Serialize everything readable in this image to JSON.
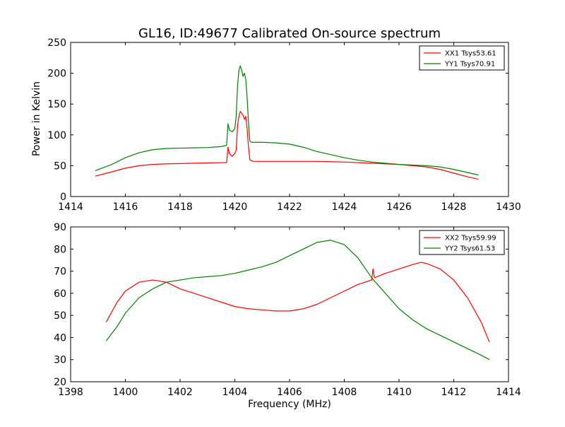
{
  "figure": {
    "title": "GL16, ID:49677 Calibrated On-source spectrum",
    "ylabel": "Power in Kelvin",
    "xlabel": "Frequency (MHz)"
  },
  "chart_data": [
    {
      "type": "line",
      "title": "GL16, ID:49677 Calibrated On-source spectrum",
      "ylabel": "Power in Kelvin",
      "xlabel": "",
      "xlim": [
        1414,
        1430
      ],
      "ylim": [
        0,
        250
      ],
      "xticks": [
        1414,
        1416,
        1418,
        1420,
        1422,
        1424,
        1426,
        1428,
        1430
      ],
      "yticks": [
        0,
        50,
        100,
        150,
        200,
        250
      ],
      "grid": false,
      "legend_position": "top-right",
      "series": [
        {
          "name": "XX1 Tsys53.61",
          "color": "#ff0000",
          "x": [
            1414.9,
            1415.5,
            1416.0,
            1416.5,
            1417.0,
            1417.5,
            1418.0,
            1418.5,
            1419.0,
            1419.5,
            1419.7,
            1419.75,
            1419.8,
            1419.9,
            1420.0,
            1420.05,
            1420.1,
            1420.15,
            1420.2,
            1420.25,
            1420.3,
            1420.35,
            1420.4,
            1420.45,
            1420.5,
            1420.55,
            1420.6,
            1420.7,
            1421.0,
            1421.5,
            1422.0,
            1422.5,
            1423.0,
            1423.5,
            1424.0,
            1424.5,
            1425.0,
            1425.5,
            1426.0,
            1426.5,
            1427.0,
            1427.5,
            1428.0,
            1428.5,
            1428.9
          ],
          "y": [
            33,
            40,
            46,
            50,
            52,
            53,
            53.5,
            54,
            54.5,
            55,
            55,
            80,
            70,
            65,
            70,
            75,
            115,
            130,
            138,
            135,
            132,
            125,
            130,
            110,
            80,
            60,
            58,
            57,
            57,
            57,
            57,
            57,
            57,
            56.5,
            56,
            55,
            54,
            53,
            52,
            50,
            48,
            44,
            38,
            32,
            28
          ]
        },
        {
          "name": "YY1 Tsys70.91",
          "color": "#008000",
          "x": [
            1414.9,
            1415.5,
            1416.0,
            1416.5,
            1417.0,
            1417.5,
            1418.0,
            1418.5,
            1419.0,
            1419.5,
            1419.7,
            1419.75,
            1419.8,
            1419.9,
            1420.0,
            1420.05,
            1420.1,
            1420.15,
            1420.2,
            1420.25,
            1420.3,
            1420.35,
            1420.4,
            1420.45,
            1420.5,
            1420.55,
            1420.6,
            1420.7,
            1421.0,
            1421.5,
            1422.0,
            1422.5,
            1423.0,
            1423.5,
            1424.0,
            1424.5,
            1425.0,
            1425.5,
            1426.0,
            1426.5,
            1427.0,
            1427.5,
            1428.0,
            1428.5,
            1428.9
          ],
          "y": [
            42,
            52,
            63,
            71,
            76,
            78,
            78.5,
            79,
            79.5,
            81,
            83,
            118,
            108,
            105,
            110,
            130,
            180,
            205,
            212,
            205,
            195,
            200,
            190,
            160,
            120,
            90,
            88,
            88,
            88,
            87,
            85,
            80,
            73,
            68,
            63,
            59,
            56,
            54,
            52,
            51,
            50,
            48,
            44,
            39,
            35
          ]
        }
      ]
    },
    {
      "type": "line",
      "title": "",
      "ylabel": "",
      "xlabel": "Frequency (MHz)",
      "xlim": [
        1398,
        1414
      ],
      "ylim": [
        20,
        90
      ],
      "xticks": [
        1398,
        1400,
        1402,
        1404,
        1406,
        1408,
        1410,
        1412,
        1414
      ],
      "yticks": [
        20,
        30,
        40,
        50,
        60,
        70,
        80,
        90
      ],
      "grid": false,
      "legend_position": "top-right",
      "series": [
        {
          "name": "XX2 Tsys59.99",
          "color": "#ff0000",
          "x": [
            1399.3,
            1399.7,
            1400.0,
            1400.5,
            1401.0,
            1401.5,
            1402.0,
            1402.5,
            1403.0,
            1403.5,
            1404.0,
            1404.5,
            1405.0,
            1405.5,
            1406.0,
            1406.5,
            1407.0,
            1407.5,
            1408.0,
            1408.5,
            1409.0,
            1409.05,
            1409.1,
            1409.5,
            1410.0,
            1410.5,
            1410.8,
            1411.0,
            1411.5,
            1412.0,
            1412.5,
            1413.0,
            1413.3
          ],
          "y": [
            47,
            56,
            61,
            65,
            66,
            65,
            62,
            60,
            58,
            56,
            54,
            53,
            52.5,
            52,
            52,
            53,
            55,
            58,
            61,
            64,
            66,
            71,
            67,
            69,
            71,
            73,
            74,
            73.5,
            71,
            66,
            58,
            47,
            38
          ]
        },
        {
          "name": "YY2 Tsys61.53",
          "color": "#008000",
          "x": [
            1399.3,
            1399.7,
            1400.0,
            1400.5,
            1401.0,
            1401.5,
            1402.0,
            1402.5,
            1403.0,
            1403.5,
            1404.0,
            1404.5,
            1405.0,
            1405.5,
            1406.0,
            1406.5,
            1407.0,
            1407.5,
            1408.0,
            1408.5,
            1409.0,
            1409.5,
            1410.0,
            1410.5,
            1411.0,
            1411.5,
            1412.0,
            1412.5,
            1413.0,
            1413.3
          ],
          "y": [
            38.5,
            45,
            51,
            58,
            62,
            65,
            66,
            67,
            67.5,
            68,
            69,
            70.5,
            72,
            74,
            77,
            80,
            83,
            84,
            82,
            76,
            67,
            60,
            53,
            48,
            44,
            41,
            38,
            35,
            32,
            30
          ]
        }
      ]
    }
  ]
}
